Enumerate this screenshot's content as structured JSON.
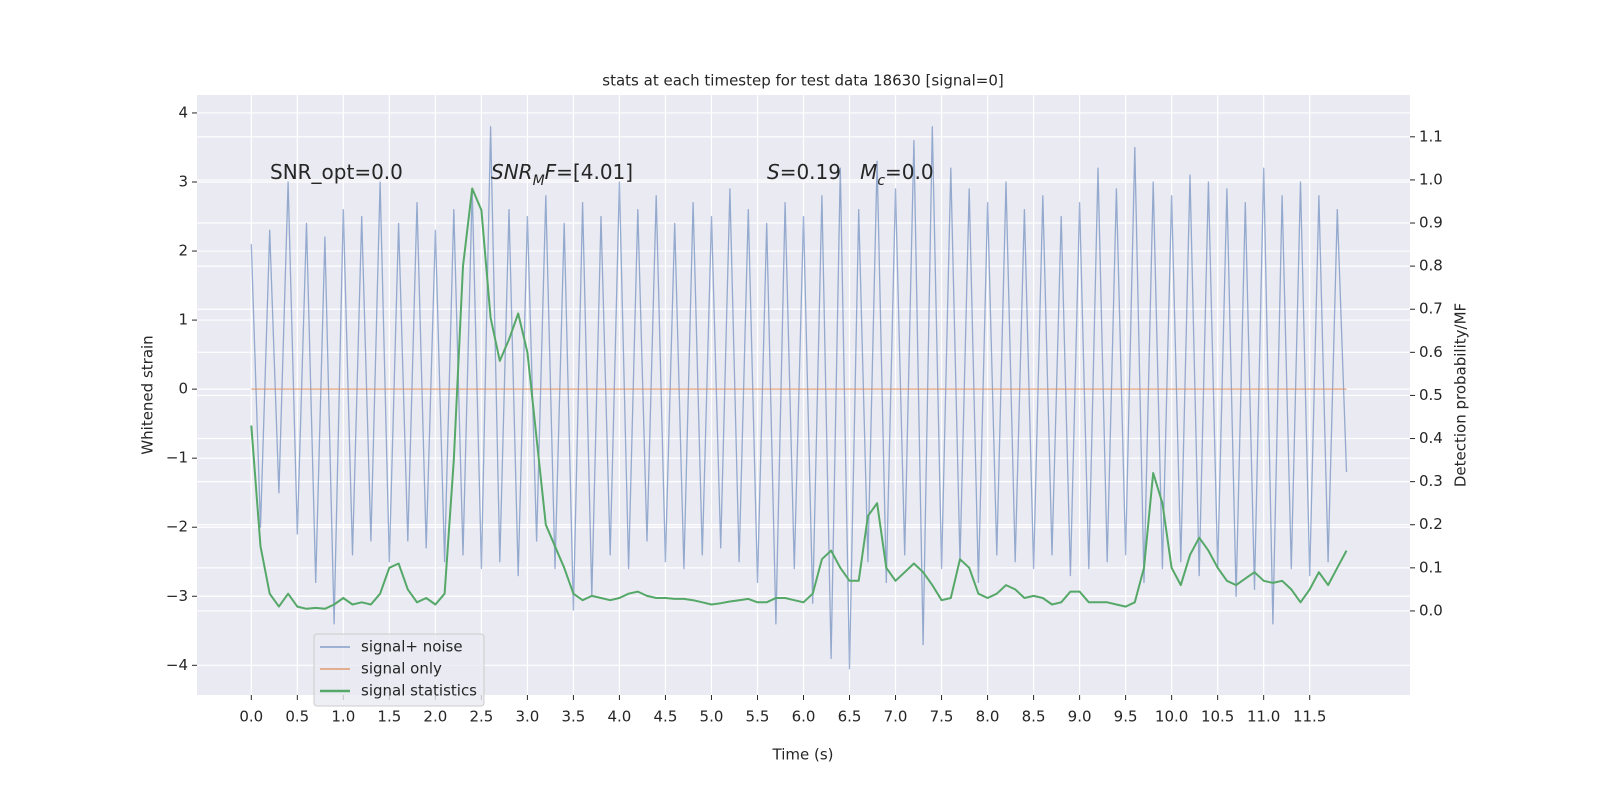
{
  "chart_data": {
    "type": "line",
    "title": "stats at each timestep for test data 18630 [signal=0]",
    "xlabel": "Time (s)",
    "ylabel": "Whitened strain",
    "y2label": "Detection probability/MF",
    "grid": true,
    "legend": "lower left",
    "xlim": [
      -0.59,
      12.59
    ],
    "ylim": [
      -4.43,
      4.26
    ],
    "y2lim": [
      -0.195,
      1.197
    ],
    "xticks": [
      {
        "value": 0,
        "label": "0.0"
      },
      0.5,
      {
        "value": 1,
        "label": "1.0"
      },
      1.5,
      {
        "value": 2,
        "label": "2.0"
      },
      2.5,
      {
        "value": 3,
        "label": "3.0"
      },
      3.5,
      {
        "value": 4,
        "label": "4.0"
      },
      4.5,
      {
        "value": 5,
        "label": "5.0"
      },
      5.5,
      {
        "value": 6,
        "label": "6.0"
      },
      6.5,
      {
        "value": 7,
        "label": "7.0"
      },
      7.5,
      {
        "value": 8,
        "label": "8.0"
      },
      8.5,
      {
        "value": 9,
        "label": "9.0"
      },
      9.5,
      {
        "value": 10,
        "label": "10.0"
      },
      10.5,
      {
        "value": 11,
        "label": "11.0"
      },
      11.5
    ],
    "yticks": [
      {
        "value": -4,
        "label": "−4"
      },
      {
        "value": -3,
        "label": "−3"
      },
      {
        "value": -2,
        "label": "−2"
      },
      {
        "value": -1,
        "label": "−1"
      },
      0,
      1,
      2,
      3,
      4
    ],
    "y2ticks": [
      {
        "value": 0,
        "label": "0.0"
      },
      0.1,
      0.2,
      0.3,
      0.4,
      0.5,
      0.6,
      0.7,
      0.8,
      0.9,
      {
        "value": 1,
        "label": "1.0"
      },
      1.1
    ],
    "annotations": [
      {
        "parts": [
          {
            "text": "SNR_opt=0.0"
          }
        ]
      },
      {
        "parts": [
          {
            "text": "SNR",
            "italic": true
          },
          {
            "text": "M",
            "italic": true,
            "sub": true
          },
          {
            "text": "F",
            "italic": true
          },
          {
            "text": "=[4.01]"
          }
        ]
      },
      {
        "parts": [
          {
            "text": "S",
            "italic": true
          },
          {
            "text": "=0.19   "
          },
          {
            "text": "M",
            "italic": true
          },
          {
            "text": "c",
            "italic": true,
            "sub": true
          },
          {
            "text": "=0.0"
          }
        ]
      }
    ],
    "x": [
      0.0,
      0.1,
      0.2,
      0.3,
      0.4,
      0.5,
      0.6,
      0.7,
      0.8,
      0.9,
      1.0,
      1.1,
      1.2,
      1.3,
      1.4,
      1.5,
      1.6,
      1.7,
      1.8,
      1.9,
      2.0,
      2.1,
      2.2,
      2.3,
      2.4,
      2.5,
      2.6,
      2.7,
      2.8,
      2.9,
      3.0,
      3.1,
      3.2,
      3.3,
      3.4,
      3.5,
      3.6,
      3.7,
      3.8,
      3.9,
      4.0,
      4.1,
      4.2,
      4.3,
      4.4,
      4.5,
      4.6,
      4.7,
      4.8,
      4.9,
      5.0,
      5.1,
      5.2,
      5.3,
      5.4,
      5.5,
      5.6,
      5.7,
      5.8,
      5.9,
      6.0,
      6.1,
      6.2,
      6.3,
      6.4,
      6.5,
      6.6,
      6.7,
      6.8,
      6.9,
      7.0,
      7.1,
      7.2,
      7.3,
      7.4,
      7.5,
      7.6,
      7.7,
      7.8,
      7.9,
      8.0,
      8.1,
      8.2,
      8.3,
      8.4,
      8.5,
      8.6,
      8.7,
      8.8,
      8.9,
      9.0,
      9.1,
      9.2,
      9.3,
      9.4,
      9.5,
      9.6,
      9.7,
      9.8,
      9.9,
      10.0,
      10.1,
      10.2,
      10.3,
      10.4,
      10.5,
      10.6,
      10.7,
      10.8,
      10.9,
      11.0,
      11.1,
      11.2,
      11.3,
      11.4,
      11.5,
      11.6,
      11.7,
      11.8,
      11.9
    ],
    "series": [
      {
        "name": "signal+ noise",
        "color": "#4c72b0",
        "values": [
          2.1,
          -2.0,
          2.3,
          -1.5,
          3.0,
          -2.1,
          2.4,
          -2.8,
          2.2,
          -3.4,
          2.6,
          -2.4,
          2.5,
          -2.2,
          3.0,
          -2.5,
          2.4,
          -2.2,
          2.7,
          -2.3,
          2.3,
          -2.5,
          2.6,
          -2.4,
          2.9,
          -2.6,
          3.8,
          -2.5,
          2.6,
          -2.7,
          2.5,
          -2.2,
          2.8,
          -2.6,
          2.4,
          -3.2,
          2.7,
          -3.0,
          2.5,
          -2.4,
          3.0,
          -2.6,
          2.6,
          -2.2,
          2.8,
          -2.5,
          2.4,
          -2.6,
          2.7,
          -2.4,
          2.5,
          -2.3,
          2.9,
          -2.5,
          2.6,
          -2.8,
          2.4,
          -3.4,
          2.7,
          -2.6,
          2.5,
          -3.1,
          2.8,
          -3.9,
          3.2,
          -4.05,
          2.6,
          -2.5,
          3.3,
          -2.8,
          2.9,
          -2.4,
          3.6,
          -3.7,
          3.8,
          -2.6,
          3.2,
          -2.5,
          2.9,
          -2.8,
          2.7,
          -2.4,
          3.0,
          -2.5,
          2.6,
          -2.6,
          2.8,
          -2.4,
          2.5,
          -2.7,
          2.7,
          -2.6,
          3.2,
          -2.5,
          2.9,
          -2.4,
          3.5,
          -2.8,
          3.0,
          -2.6,
          2.8,
          -2.5,
          3.1,
          -2.7,
          3.0,
          -2.6,
          2.9,
          -3.0,
          2.7,
          -2.9,
          3.2,
          -3.4,
          2.8,
          -2.6,
          3.0,
          -2.7,
          2.8,
          -2.5,
          2.6,
          -1.2
        ]
      },
      {
        "name": "signal only",
        "color": "#dd8452",
        "values": [
          0,
          0,
          0,
          0,
          0,
          0,
          0,
          0,
          0,
          0,
          0,
          0,
          0,
          0,
          0,
          0,
          0,
          0,
          0,
          0,
          0,
          0,
          0,
          0,
          0,
          0,
          0,
          0,
          0,
          0,
          0,
          0,
          0,
          0,
          0,
          0,
          0,
          0,
          0,
          0,
          0,
          0,
          0,
          0,
          0,
          0,
          0,
          0,
          0,
          0,
          0,
          0,
          0,
          0,
          0,
          0,
          0,
          0,
          0,
          0,
          0,
          0,
          0,
          0,
          0,
          0,
          0,
          0,
          0,
          0,
          0,
          0,
          0,
          0,
          0,
          0,
          0,
          0,
          0,
          0,
          0,
          0,
          0,
          0,
          0,
          0,
          0,
          0,
          0,
          0,
          0,
          0,
          0,
          0,
          0,
          0,
          0,
          0,
          0,
          0,
          0,
          0,
          0,
          0,
          0,
          0,
          0,
          0,
          0,
          0,
          0,
          0,
          0,
          0,
          0,
          0,
          0,
          0,
          0,
          0
        ]
      },
      {
        "name": "signal statistics",
        "color": "#55a868",
        "axis": "y2",
        "values": [
          0.43,
          0.15,
          0.04,
          0.01,
          0.04,
          0.01,
          0.005,
          0.007,
          0.005,
          0.015,
          0.03,
          0.015,
          0.02,
          0.015,
          0.04,
          0.1,
          0.11,
          0.05,
          0.02,
          0.03,
          0.015,
          0.04,
          0.35,
          0.8,
          0.98,
          0.93,
          0.68,
          0.58,
          0.63,
          0.69,
          0.6,
          0.4,
          0.2,
          0.15,
          0.1,
          0.04,
          0.025,
          0.035,
          0.03,
          0.025,
          0.03,
          0.04,
          0.045,
          0.035,
          0.03,
          0.03,
          0.028,
          0.028,
          0.025,
          0.02,
          0.015,
          0.018,
          0.022,
          0.025,
          0.028,
          0.02,
          0.02,
          0.03,
          0.03,
          0.025,
          0.02,
          0.04,
          0.12,
          0.14,
          0.1,
          0.07,
          0.07,
          0.22,
          0.25,
          0.1,
          0.07,
          0.09,
          0.11,
          0.09,
          0.06,
          0.025,
          0.03,
          0.12,
          0.1,
          0.04,
          0.03,
          0.04,
          0.06,
          0.05,
          0.03,
          0.035,
          0.03,
          0.015,
          0.02,
          0.045,
          0.045,
          0.02,
          0.02,
          0.02,
          0.015,
          0.01,
          0.02,
          0.1,
          0.32,
          0.25,
          0.1,
          0.06,
          0.13,
          0.17,
          0.14,
          0.1,
          0.07,
          0.06,
          0.075,
          0.09,
          0.07,
          0.065,
          0.07,
          0.05,
          0.02,
          0.05,
          0.09,
          0.06,
          0.1,
          0.14
        ]
      }
    ]
  }
}
